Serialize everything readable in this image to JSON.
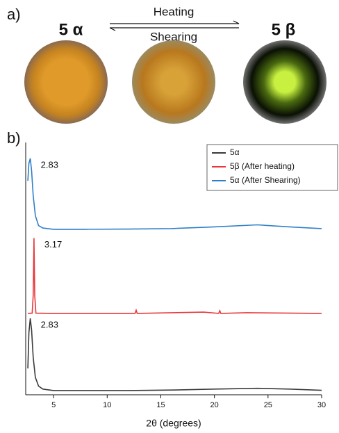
{
  "panels": {
    "a": "a)",
    "b": "b)"
  },
  "photos": {
    "left": "5 α",
    "right": "5 β"
  },
  "arrows": {
    "top": "Heating",
    "bottom": "Shearing"
  },
  "chart_data": {
    "type": "line",
    "xlabel": "2θ (degrees)",
    "xlim": [
      2.4,
      30
    ],
    "ylim": [
      0,
      100
    ],
    "xticks": [
      5,
      10,
      15,
      20,
      25,
      30
    ],
    "series": [
      {
        "name": "5α",
        "color": "#3a3a3a",
        "peak_label": "2.83",
        "x": [
          2.6,
          2.7,
          2.83,
          2.95,
          3.1,
          3.3,
          3.6,
          4,
          5,
          8,
          12,
          16,
          20,
          24,
          27,
          30
        ],
        "values": [
          10.6,
          25,
          30.7,
          26,
          15,
          7,
          3.5,
          2.3,
          1.7,
          1.7,
          1.7,
          1.9,
          2.3,
          2.6,
          2.3,
          1.8
        ]
      },
      {
        "name": "5β (After heating)",
        "color": "#e8383b",
        "peak_label": "3.17",
        "x": [
          2.6,
          3.0,
          3.1,
          3.17,
          3.24,
          3.35,
          5,
          12.6,
          12.7,
          12.8,
          19,
          20.4,
          20.5,
          20.6,
          23,
          30
        ],
        "values": [
          32.7,
          32.8,
          40,
          63,
          40,
          32.8,
          32.7,
          32.7,
          34,
          32.7,
          33.2,
          32.7,
          33.8,
          32.7,
          33,
          32.7
        ]
      },
      {
        "name": "5α (After Shearing)",
        "color": "#2f7fc8",
        "peak_label": "2.83",
        "x": [
          2.6,
          2.7,
          2.83,
          2.95,
          3.1,
          3.3,
          3.6,
          4,
          5,
          8,
          12,
          16,
          20,
          24,
          27,
          30
        ],
        "values": [
          86,
          93,
          95,
          90,
          80,
          72,
          68,
          67,
          66.5,
          66.5,
          66.6,
          66.8,
          67.5,
          68.3,
          67.5,
          66.8
        ]
      }
    ]
  }
}
